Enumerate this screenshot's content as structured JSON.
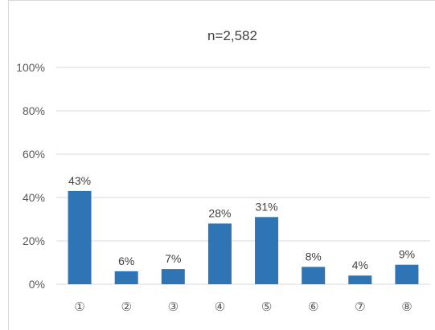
{
  "chart_data": {
    "type": "bar",
    "title": "n=2,582",
    "categories": [
      "①",
      "②",
      "③",
      "④",
      "⑤",
      "⑥",
      "⑦",
      "⑧"
    ],
    "values": [
      43,
      6,
      7,
      28,
      31,
      8,
      4,
      9
    ],
    "data_labels": [
      "43%",
      "6%",
      "7%",
      "28%",
      "31%",
      "8%",
      "4%",
      "9%"
    ],
    "ylim": [
      0,
      100
    ],
    "yticks": [
      0,
      20,
      40,
      60,
      80,
      100
    ],
    "ytick_labels": [
      "0%",
      "20%",
      "40%",
      "60%",
      "80%",
      "100%"
    ],
    "grid": true,
    "bar_color": "#2e75b6",
    "grid_color": "#d9d9d9"
  }
}
